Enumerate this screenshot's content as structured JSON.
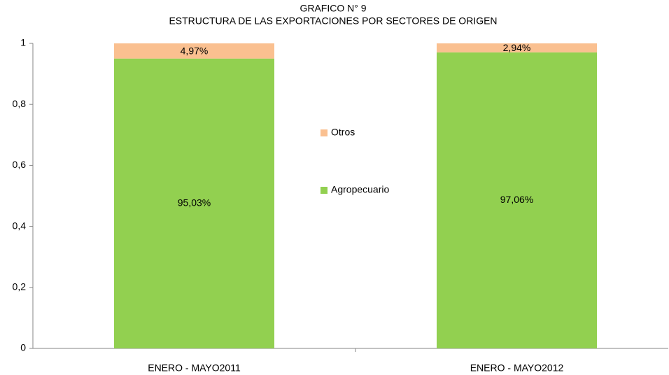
{
  "chart_data": {
    "type": "stacked_bar",
    "title": "GRAFICO N° 9",
    "subtitle": "ESTRUCTURA DE LAS EXPORTACIONES POR SECTORES DE ORIGEN",
    "categories": [
      "ENERO - MAYO2011",
      "ENERO - MAYO2012"
    ],
    "series": [
      {
        "name": "Agropecuario",
        "color": "#92d050",
        "values": [
          0.9503,
          0.9706
        ],
        "value_labels": [
          "95,03%",
          "97,06%"
        ]
      },
      {
        "name": "Otros",
        "color": "#fac090",
        "values": [
          0.0497,
          0.0294
        ],
        "value_labels": [
          "4,97%",
          "2,94%"
        ]
      }
    ],
    "ylim": [
      0,
      1
    ],
    "yticks": [
      0,
      {
        "value": 0.2,
        "label": "0,2"
      },
      {
        "value": 0.4,
        "label": "0,4"
      },
      {
        "value": 0.6,
        "label": "0,6"
      },
      {
        "value": 0.8,
        "label": "0,8"
      },
      1
    ]
  }
}
